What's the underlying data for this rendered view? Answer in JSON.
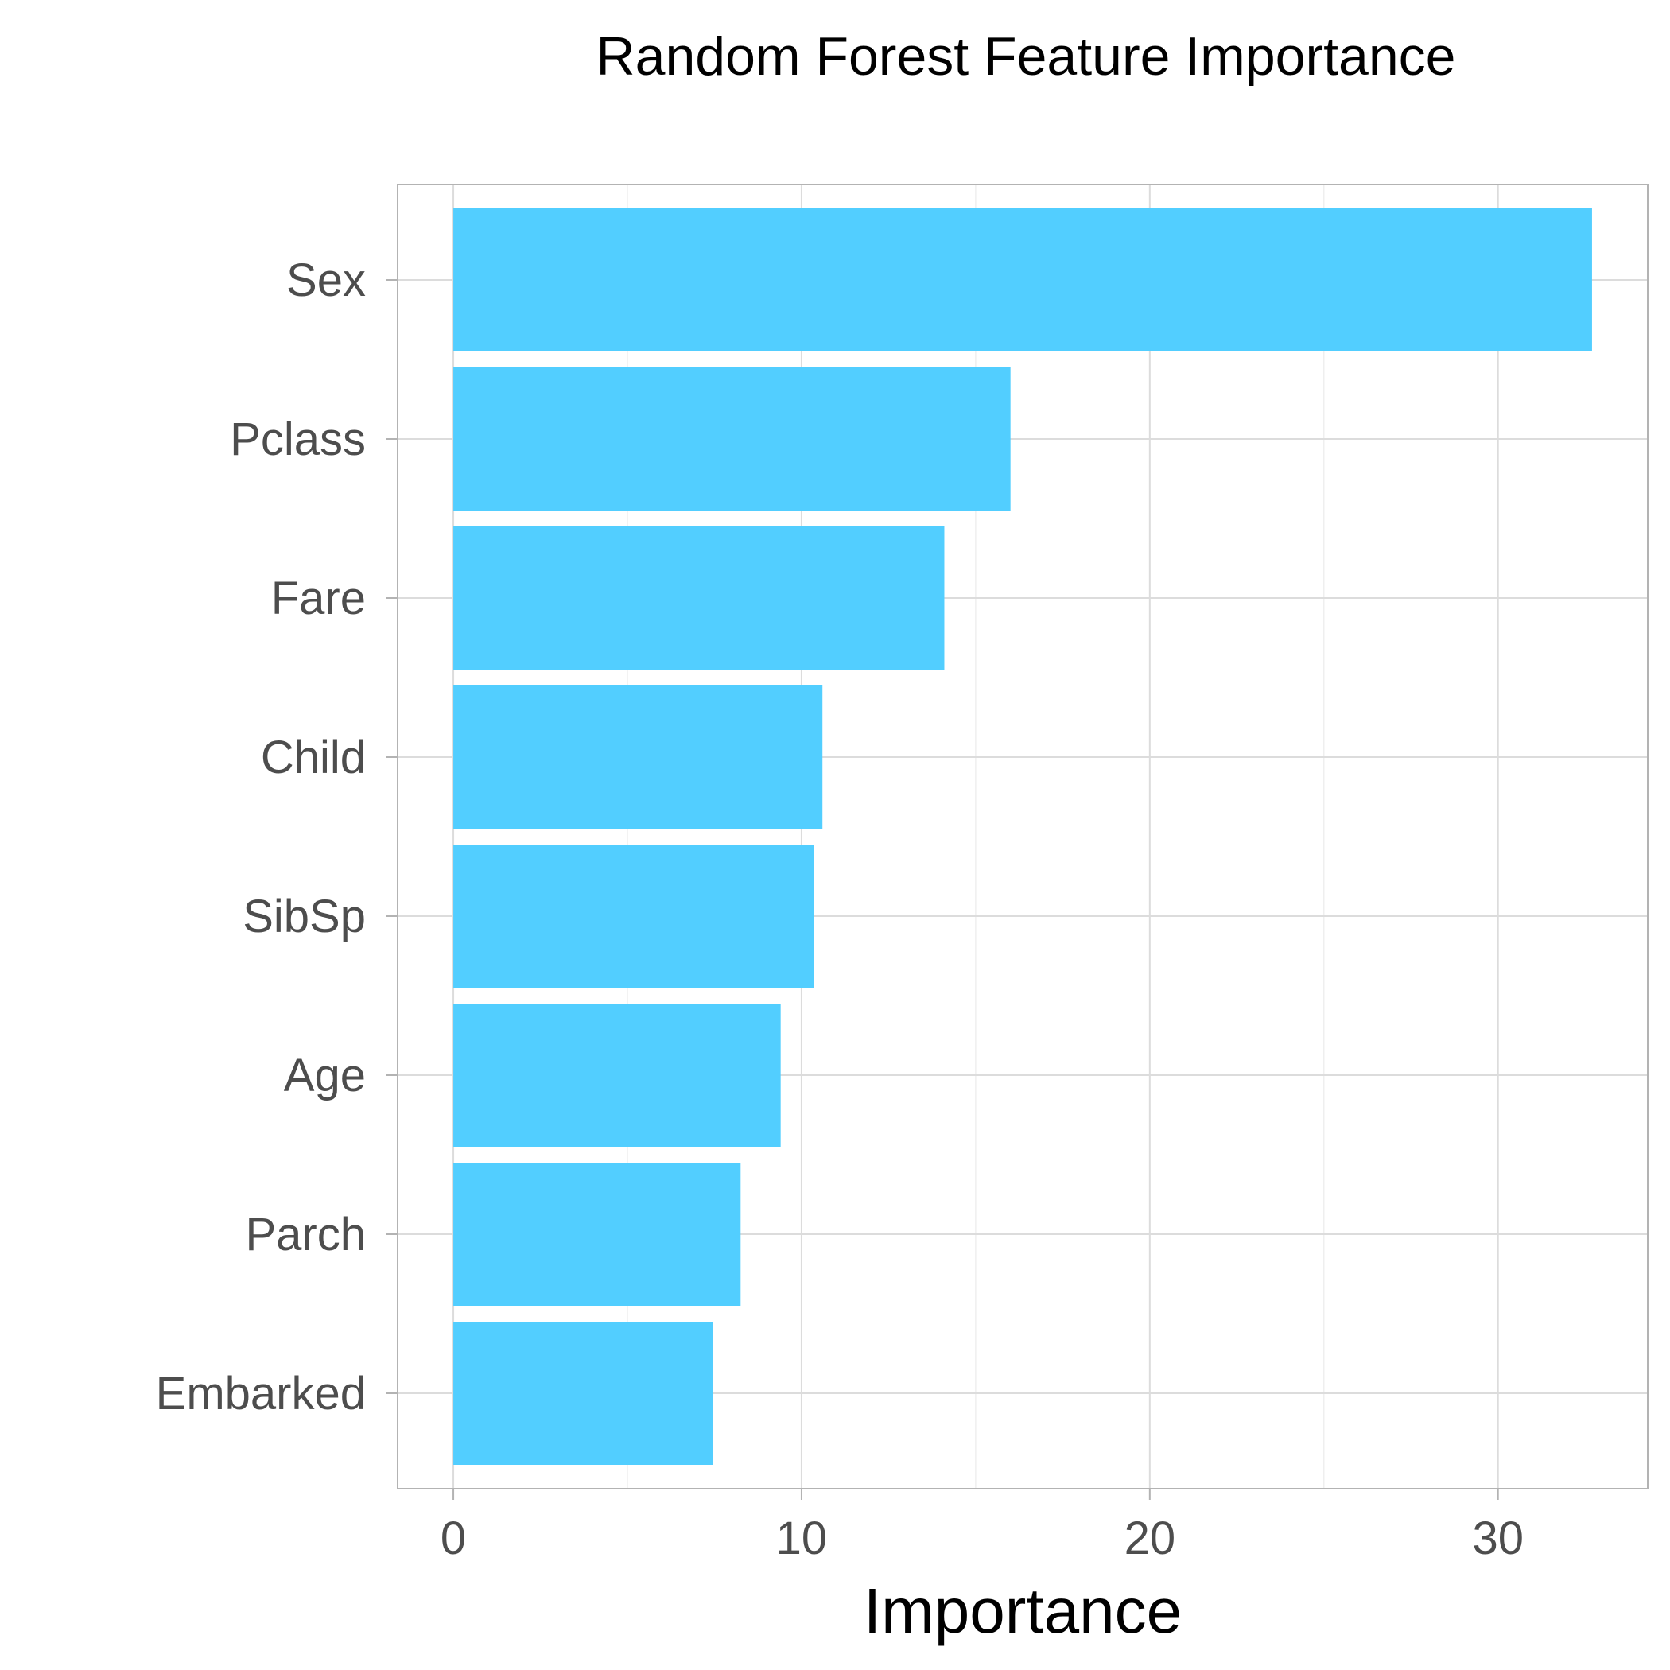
{
  "chart_data": {
    "type": "bar",
    "orientation": "horizontal",
    "title": "Random Forest Feature Importance",
    "xlabel": "Importance",
    "ylabel": "",
    "categories": [
      "Sex",
      "Pclass",
      "Fare",
      "Child",
      "SibSp",
      "Age",
      "Parch",
      "Embarked"
    ],
    "values": [
      32.7,
      16.0,
      14.1,
      10.6,
      10.35,
      9.4,
      8.25,
      7.45
    ],
    "xlim": [
      -1.6,
      34.3
    ],
    "xticks": [
      0,
      10,
      20,
      30
    ],
    "xtick_labels": [
      "0",
      "10",
      "20",
      "30"
    ],
    "grid": true,
    "legend": "none",
    "colors": {
      "bar": "#52ceff",
      "grid": "#dcdcdc",
      "grid_minor": "#efefef",
      "panel_border": "#b3b3b3",
      "tick_text": "#4d4d4d",
      "title_text": "#000000"
    }
  }
}
